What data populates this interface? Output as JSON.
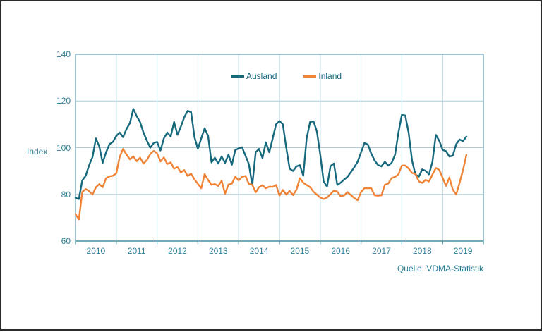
{
  "page": {
    "background": "#ffffff",
    "frame_border_color": "#2b2b2b"
  },
  "y_axis": {
    "label": "Index",
    "ticks": [
      140,
      120,
      100,
      80,
      60
    ],
    "min": 60,
    "max": 140
  },
  "x_axis": {
    "years": [
      "2010",
      "2011",
      "2012",
      "2013",
      "2014",
      "2015",
      "2016",
      "2017",
      "2018",
      "2019"
    ]
  },
  "legend": {
    "items": [
      {
        "label": "Ausland",
        "color": "#16697d"
      },
      {
        "label": "Inland",
        "color": "#f08335"
      }
    ]
  },
  "source_note": "Quelle: VDMA-Statistik",
  "colors": {
    "grid_light": "#abcdd6",
    "axis_box": "#4a8ca0",
    "label_text": "#2e7e96"
  },
  "chart_data": {
    "type": "line",
    "title": "",
    "xlabel": "",
    "ylabel": "Index",
    "ylim": [
      60,
      140
    ],
    "y_tick_step": 20,
    "grid": true,
    "legend_position": "top-center",
    "x_start": "2010-01",
    "x_frequency": "monthly",
    "x_axis_span_years": [
      2010,
      2020
    ],
    "source": "Quelle: VDMA-Statistik",
    "series": [
      {
        "name": "Ausland",
        "color": "#16697d",
        "values": [
          78.5,
          78,
          86,
          88,
          92.5,
          96,
          104,
          100.5,
          93.5,
          98,
          101.5,
          102.5,
          105,
          106.5,
          104.5,
          108,
          110.5,
          116.6,
          113.5,
          111,
          106.5,
          103,
          100,
          102,
          102.5,
          98.8,
          104,
          106.5,
          104.8,
          111,
          105.5,
          109,
          113,
          115.8,
          115.2,
          104.5,
          99.5,
          104,
          108.3,
          105,
          93.7,
          95.7,
          93.2,
          96.2,
          93.5,
          97,
          92.7,
          99,
          99.7,
          100.2,
          96.6,
          93,
          84,
          98,
          99.5,
          95.5,
          102.3,
          98,
          104,
          110,
          111.4,
          110,
          100,
          91,
          90,
          92,
          92.5,
          88,
          104,
          111,
          111.3,
          107,
          97,
          85.5,
          83.3,
          92.1,
          93.2,
          84,
          85,
          86.3,
          87.5,
          89.5,
          91.6,
          94,
          98,
          102,
          101.4,
          97.5,
          94.5,
          92.5,
          92,
          94,
          92.3,
          93.5,
          97,
          106.5,
          114,
          113.8,
          106.5,
          94.4,
          88.5,
          87.6,
          90.7,
          90.1,
          88.6,
          94,
          105.5,
          103,
          99.1,
          98.5,
          96.2,
          96.6,
          101.5,
          103.5,
          102.8,
          104.7
        ]
      },
      {
        "name": "Inland",
        "color": "#f08335",
        "values": [
          71.5,
          69.3,
          81,
          82.3,
          81.4,
          80,
          83,
          84.4,
          83,
          86.9,
          87.7,
          88,
          89,
          96,
          99.5,
          97,
          95,
          96.3,
          94.2,
          95.7,
          93.2,
          94.7,
          97.3,
          98.6,
          97.6,
          94.1,
          95.8,
          93,
          93.7,
          91,
          91.7,
          89.4,
          90.4,
          87.9,
          88.9,
          86.4,
          84.5,
          82.6,
          88.7,
          86.1,
          84.1,
          84.4,
          83.6,
          85.8,
          80.3,
          84.2,
          84.6,
          87.6,
          86,
          87.5,
          87.9,
          84.5,
          84.1,
          80.9,
          83.1,
          83.9,
          82.6,
          83.3,
          83.2,
          84,
          79.5,
          81.9,
          79.9,
          81.5,
          79.7,
          82,
          86.9,
          85,
          84,
          83.1,
          81.1,
          79.9,
          78.6,
          78,
          78.6,
          80.1,
          81.6,
          81.2,
          79.1,
          79.5,
          81,
          79.7,
          78.4,
          77.5,
          81,
          82.6,
          82.6,
          82.6,
          79.6,
          79.4,
          79.6,
          84.1,
          84.6,
          87,
          87.5,
          88.6,
          92.3,
          92.4,
          91.1,
          89.2,
          88.7,
          85.6,
          84.9,
          86.2,
          85.5,
          88.5,
          91.3,
          90.5,
          87.1,
          83.6,
          87.2,
          82,
          80,
          85,
          90.4,
          96.9
        ]
      }
    ]
  }
}
